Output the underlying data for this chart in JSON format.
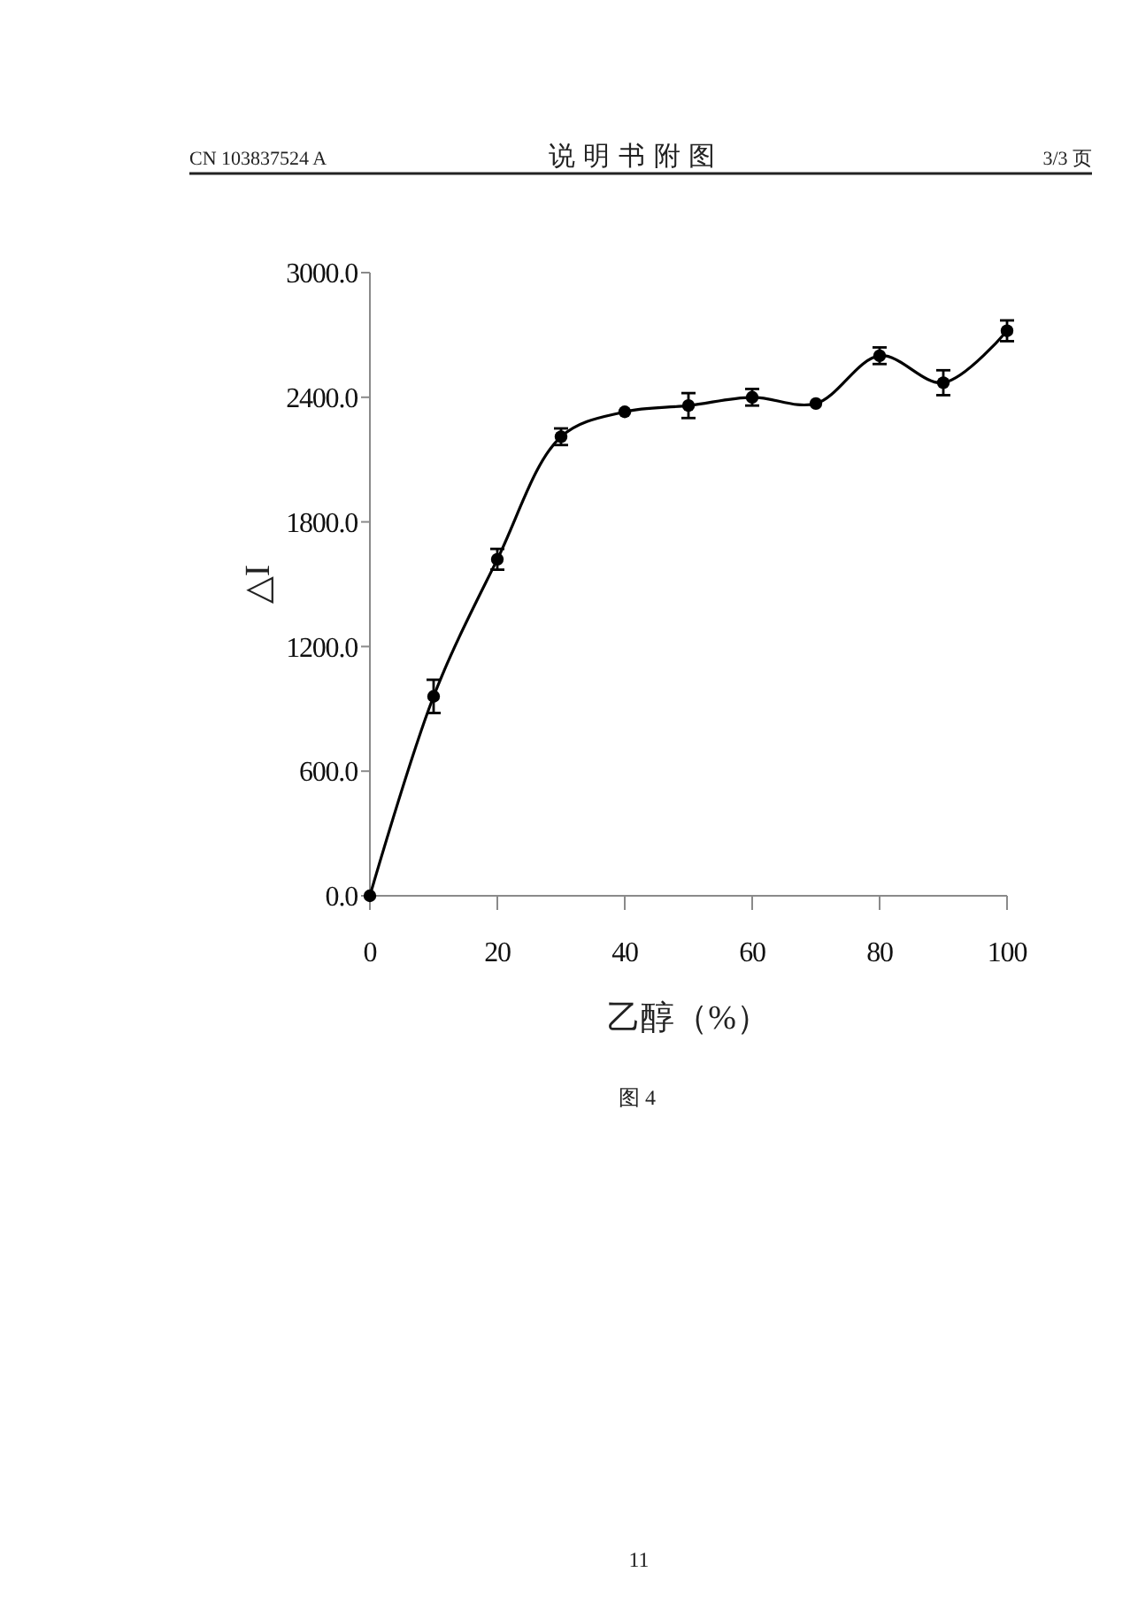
{
  "chart_data": {
    "type": "line",
    "xlabel": "乙醇（%）",
    "ylabel": "△I",
    "annotations": [
      "CN 103837524 A",
      "说 明 书 附 图",
      "3/3 页",
      "图 4",
      "11"
    ],
    "x": [
      0,
      10,
      20,
      30,
      40,
      50,
      60,
      70,
      80,
      90,
      100
    ],
    "values": [
      0,
      960,
      1620,
      2210,
      2330,
      2360,
      2400,
      2370,
      2600,
      2470,
      2720
    ],
    "errors": [
      null,
      80,
      50,
      40,
      null,
      60,
      40,
      null,
      40,
      60,
      50
    ],
    "color": "#000000",
    "marker": "circle",
    "line_style": "solid",
    "xlim": [
      0,
      100
    ],
    "xticks": [
      0,
      20,
      40,
      60,
      80,
      100
    ],
    "ylim": [
      0,
      3000
    ],
    "yticks": [
      {
        "value": 0,
        "label": "0.0"
      },
      {
        "value": 600,
        "label": "600.0"
      },
      {
        "value": 1200,
        "label": "1200.0"
      },
      {
        "value": 1800,
        "label": "1800.0"
      },
      {
        "value": 2400,
        "label": "2400.0"
      },
      {
        "value": 3000,
        "label": "3000.0"
      }
    ]
  }
}
